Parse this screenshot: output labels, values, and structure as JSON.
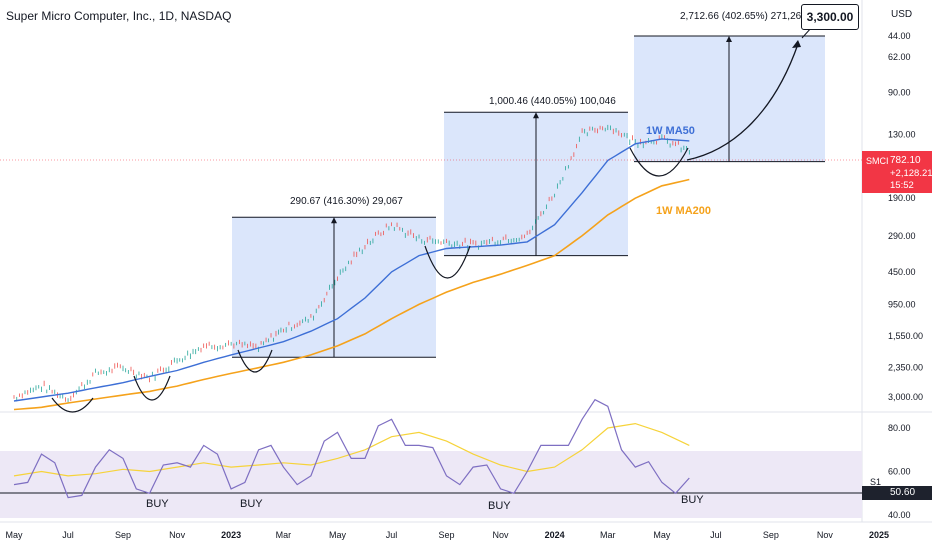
{
  "header": {
    "title": "Super Micro Computer, Inc., 1D, NASDAQ",
    "currency": "USD"
  },
  "y_axis_labels": [
    "3,000.00",
    "2,350.00",
    "1,550.00",
    "950.00",
    "450.00",
    "290.00",
    "190.00",
    "130.00",
    "90.00",
    "62.00",
    "44.00"
  ],
  "oscillator_axis_labels": [
    "80.00",
    "60.00",
    "40.00"
  ],
  "x_axis_labels": [
    "May",
    "Jul",
    "Sep",
    "Nov",
    "2023",
    "Mar",
    "May",
    "Jul",
    "Sep",
    "Nov",
    "2024",
    "Mar",
    "May",
    "Jul",
    "Sep",
    "Nov",
    "2025"
  ],
  "price_tag": {
    "ticker": "SMCI",
    "price": "782.10",
    "change": "+2,128.21%",
    "countdown": "15:52"
  },
  "oscillator_tag": {
    "level_label": "S1",
    "value": "50.60"
  },
  "target_box": "3,300.00",
  "annotations": {
    "projection_1": "290.67 (416.30%) 29,067",
    "projection_2": "1,000.46 (440.05%) 100,046",
    "projection_3": "2,712.66 (402.65%) 271,266",
    "ma50_label": "1W MA50",
    "ma200_label": "1W MA200",
    "buy_labels": [
      "BUY",
      "BUY",
      "BUY",
      "BUY"
    ]
  },
  "colors": {
    "ma50": "#3d6fd6",
    "ma200": "#f5a21b",
    "candle_up": "#26a69a",
    "candle_down": "#ef5350",
    "projection_fill": "#dbe6fb",
    "rsi": "#7e6fc2",
    "rsi_ma": "#f6d33a",
    "price_line": "#f23645"
  },
  "chart_data": [
    {
      "type": "line",
      "title": "Super Micro Computer, Inc., 1D, NASDAQ",
      "y_scale": "log",
      "ylim": [
        40,
        3300
      ],
      "y_ticks": [
        44,
        62,
        90,
        130,
        190,
        290,
        450,
        950,
        1550,
        2350,
        3000
      ],
      "x_ticks": [
        "May",
        "Jul",
        "Sep",
        "Nov",
        "2023",
        "Mar",
        "May",
        "Jul",
        "Sep",
        "Nov",
        "2024",
        "Mar",
        "May",
        "Jul",
        "Sep",
        "Nov",
        "2025"
      ],
      "x": [
        "2022-05-01",
        "2022-06-01",
        "2022-07-01",
        "2022-08-01",
        "2022-09-01",
        "2022-10-01",
        "2022-11-01",
        "2022-12-01",
        "2023-01-01",
        "2023-02-01",
        "2023-03-01",
        "2023-04-01",
        "2023-05-01",
        "2023-06-01",
        "2023-07-01",
        "2023-08-01",
        "2023-09-01",
        "2023-10-01",
        "2023-11-01",
        "2023-12-01",
        "2024-01-01",
        "2024-02-01",
        "2024-03-01",
        "2024-04-01",
        "2024-05-01",
        "2024-06-01"
      ],
      "series": [
        {
          "name": "SMCI",
          "values": [
            44,
            50,
            43,
            58,
            62,
            55,
            68,
            80,
            82,
            78,
            98,
            110,
            180,
            260,
            330,
            280,
            270,
            260,
            280,
            290,
            480,
            950,
            1050,
            870,
            900,
            782
          ]
        },
        {
          "name": "1W MA50",
          "values": [
            42,
            44,
            46,
            49,
            52,
            56,
            60,
            66,
            72,
            78,
            84,
            95,
            110,
            140,
            190,
            230,
            250,
            255,
            260,
            270,
            330,
            480,
            700,
            850,
            900,
            880
          ]
        },
        {
          "name": "1W MA200",
          "values": [
            38,
            39,
            41,
            43,
            45,
            47,
            50,
            54,
            58,
            62,
            66,
            72,
            80,
            92,
            110,
            130,
            150,
            168,
            185,
            205,
            230,
            290,
            370,
            450,
            520,
            560
          ]
        }
      ],
      "projections": [
        {
          "label": "290.67 (416.30%) 29,067",
          "from": 70,
          "to": 360
        },
        {
          "label": "1,000.46 (440.05%) 100,046",
          "from": 230,
          "to": 1230
        },
        {
          "label": "2,712.66 (402.65%) 271,266",
          "from": 690,
          "to": 3000
        }
      ],
      "target": 3300,
      "last_price": 782.1
    },
    {
      "type": "line",
      "ylim": [
        38,
        86
      ],
      "y_ticks": [
        40,
        60,
        80
      ],
      "x": [
        "2022-05",
        "2022-06",
        "2022-07",
        "2022-08",
        "2022-09",
        "2022-10",
        "2022-11",
        "2022-12",
        "2023-01",
        "2023-02",
        "2023-03",
        "2023-04",
        "2023-05",
        "2023-06",
        "2023-07",
        "2023-08",
        "2023-09",
        "2023-10",
        "2023-11",
        "2023-12",
        "2024-01",
        "2024-02",
        "2024-03",
        "2024-04",
        "2024-05",
        "2024-06"
      ],
      "series": [
        {
          "values": [
            54,
            68,
            48,
            62,
            66,
            50,
            64,
            72,
            52,
            70,
            62,
            58,
            78,
            66,
            84,
            72,
            58,
            62,
            52,
            60,
            72,
            84,
            90,
            62,
            55,
            57
          ]
        },
        {
          "values": [
            58,
            60,
            58,
            59,
            61,
            60,
            62,
            64,
            62,
            63,
            64,
            63,
            66,
            70,
            76,
            78,
            74,
            68,
            63,
            60,
            62,
            70,
            80,
            82,
            78,
            72
          ]
        }
      ],
      "support_level": 50.6
    }
  ]
}
